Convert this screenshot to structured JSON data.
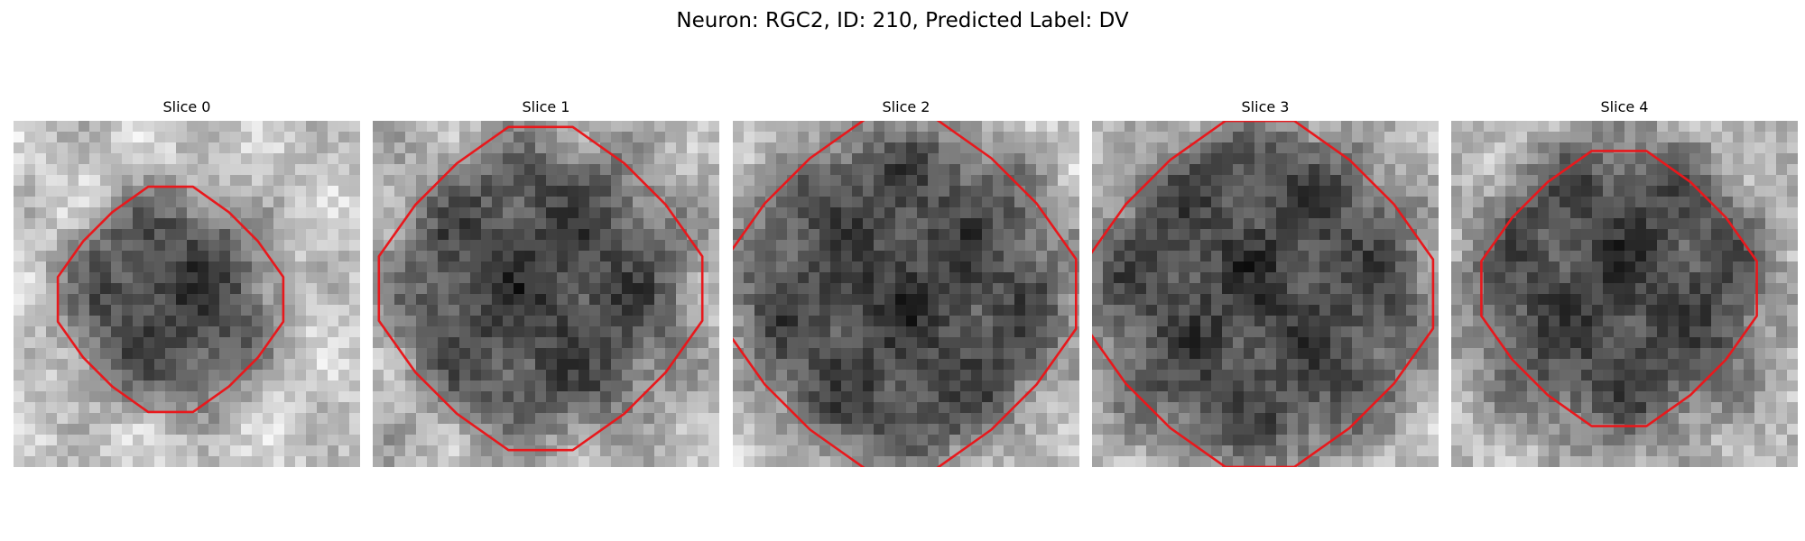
{
  "figure": {
    "title": "Neuron: RGC2, ID: 210, Predicted Label: DV"
  },
  "colors": {
    "contour": "#e8181c",
    "background": "#ffffff",
    "colormap": "gray"
  },
  "panels": [
    {
      "title": "Slice 0",
      "contour_color": "red"
    },
    {
      "title": "Slice 1",
      "contour_color": "red"
    },
    {
      "title": "Slice 2",
      "contour_color": "red"
    },
    {
      "title": "Slice 3",
      "contour_color": "red"
    },
    {
      "title": "Slice 4",
      "contour_color": "red"
    }
  ]
}
